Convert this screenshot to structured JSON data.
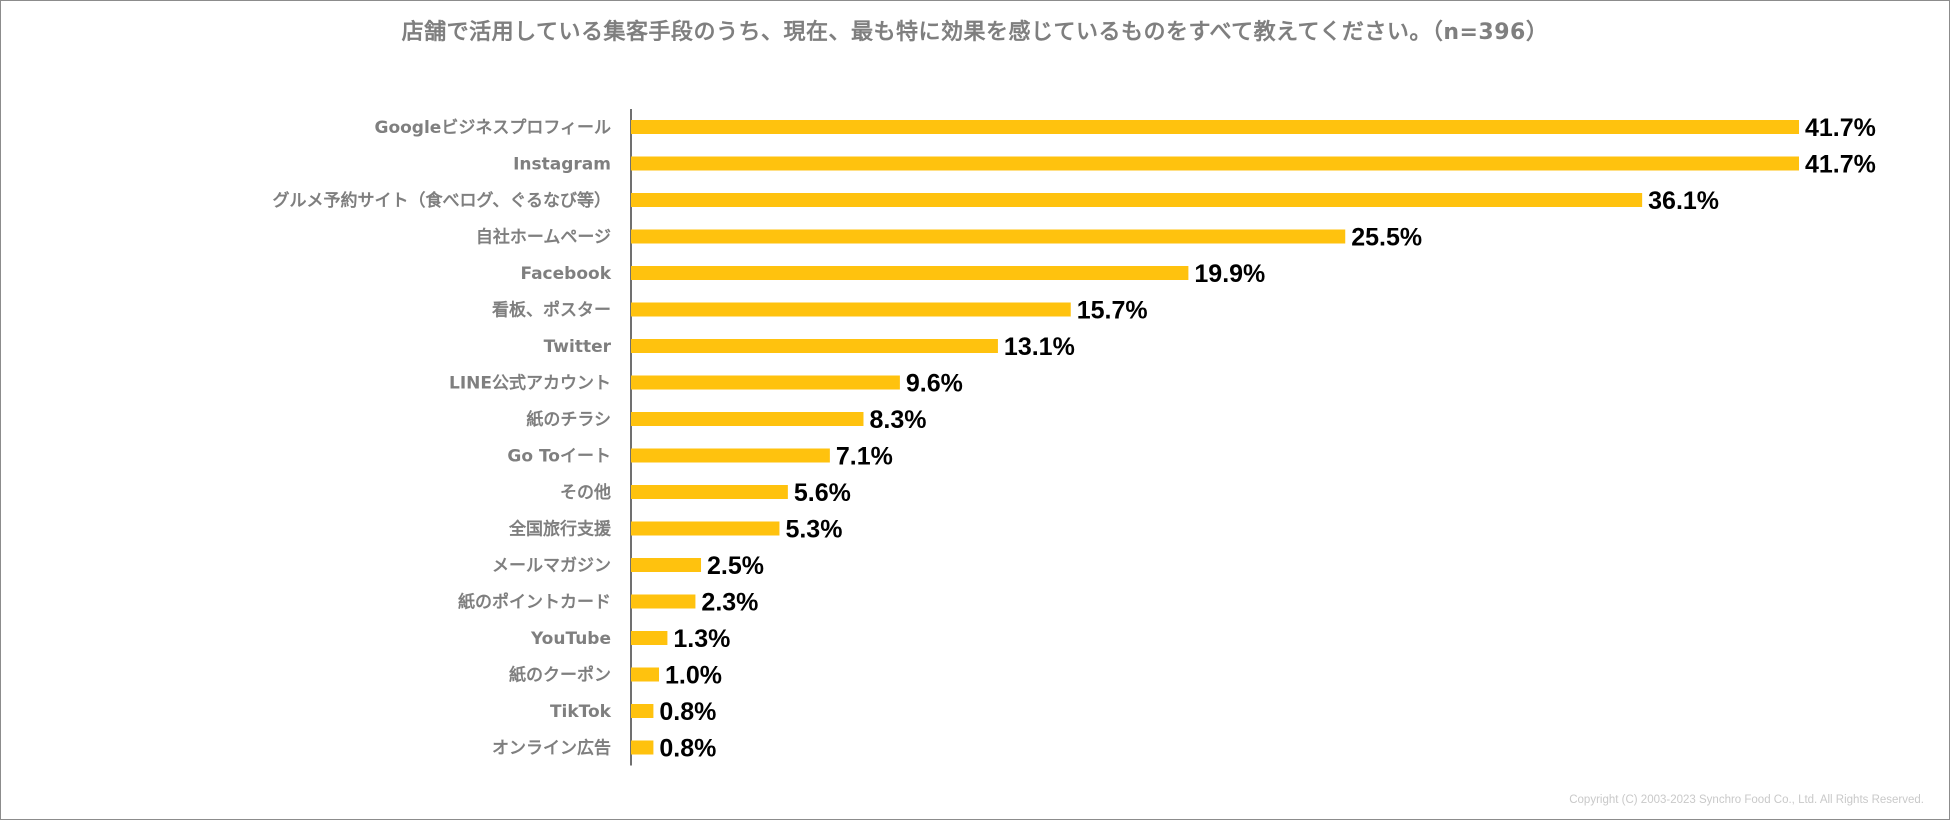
{
  "chart_data": {
    "type": "bar",
    "orientation": "horizontal",
    "title": "店舗で活用している集客手段のうち、現在、最も特に効果を感じているものをすべて教えてください。（n=396）",
    "categories": [
      "Googleビジネスプロフィール",
      "Instagram",
      "グルメ予約サイト（食べログ、ぐるなび等）",
      "自社ホームページ",
      "Facebook",
      "看板、ポスター",
      "Twitter",
      "LINE公式アカウント",
      "紙のチラシ",
      "Go Toイート",
      "その他",
      "全国旅行支援",
      "メールマガジン",
      "紙のポイントカード",
      "YouTube",
      "紙のクーポン",
      "TikTok",
      "オンライン広告"
    ],
    "values": [
      41.7,
      41.7,
      36.1,
      25.5,
      19.9,
      15.7,
      13.1,
      9.6,
      8.3,
      7.1,
      5.6,
      5.3,
      2.5,
      2.3,
      1.3,
      1.0,
      0.8,
      0.8
    ],
    "value_labels": [
      "41.7%",
      "41.7%",
      "36.1%",
      "25.5%",
      "19.9%",
      "15.7%",
      "13.1%",
      "9.6%",
      "8.3%",
      "7.1%",
      "5.6%",
      "5.3%",
      "2.5%",
      "2.3%",
      "1.3%",
      "1.0%",
      "0.8%",
      "0.8%"
    ],
    "xlim": [
      0,
      41.7
    ],
    "grid": false,
    "legend": "none",
    "bar_color": "#FFC20E"
  },
  "footer": {
    "copyright": "Copyright (C) 2003-2023   Synchro Food Co., Ltd. All Rights Reserved."
  }
}
